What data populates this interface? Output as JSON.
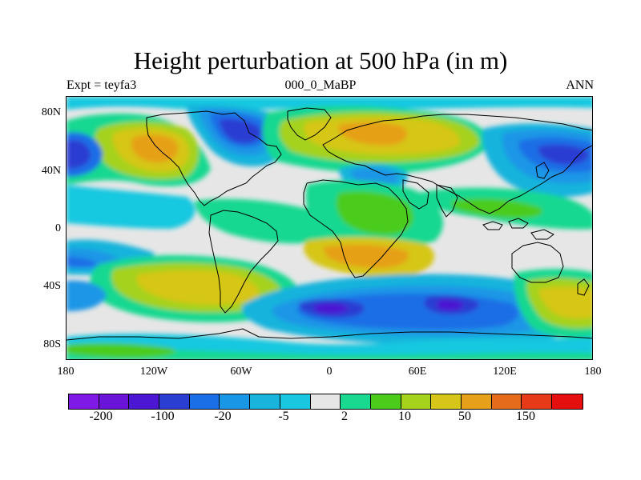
{
  "title": "Height perturbation at 500 hPa (in m)",
  "subtitle_left": "Expt = teyfa3",
  "subtitle_center": "000_0_MaBP",
  "subtitle_right": "ANN",
  "map": {
    "lon_range": [
      -180,
      180
    ],
    "lat_range": [
      -90,
      90
    ],
    "y_ticks": [
      "80N",
      "40N",
      "0",
      "40S",
      "80S"
    ],
    "x_ticks": [
      "180",
      "120W",
      "60W",
      "0",
      "60E",
      "120E",
      "180"
    ],
    "background_color": "#e6e6e6"
  },
  "colorbar": {
    "colors": [
      "#7f19e6",
      "#6b14d9",
      "#4b17d2",
      "#2a3ed2",
      "#1a6ee6",
      "#1a96e6",
      "#19b4dc",
      "#19c8e0",
      "#e6e6e6",
      "#19d890",
      "#4ccc1a",
      "#a5d21a",
      "#d6c619",
      "#e6a019",
      "#e66b1a",
      "#e63a19",
      "#e60f0f"
    ],
    "labels": [
      "-200",
      "-100",
      "-20",
      "-5",
      "2",
      "10",
      "50",
      "150"
    ]
  }
}
